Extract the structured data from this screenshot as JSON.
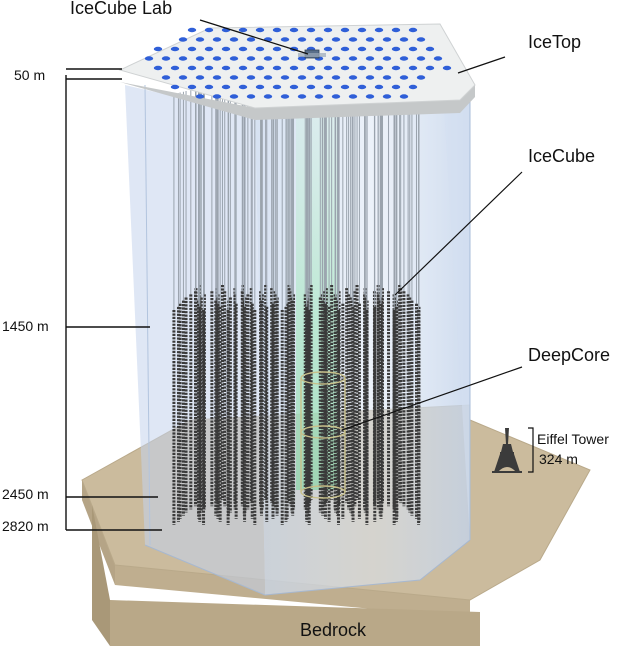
{
  "labels": {
    "icecube_lab": "IceCube Lab",
    "icetop": "IceTop",
    "icecube": "IceCube",
    "deepcore": "DeepCore",
    "bedrock": "Bedrock",
    "eiffel_name": "Eiffel Tower",
    "eiffel_height": "324 m"
  },
  "depths": [
    "50 m",
    "1450 m",
    "2450 m",
    "2820 m"
  ],
  "colors": {
    "surface": "#eef0f0",
    "surface_edge": "#c9cccd",
    "tank": "#2f5fd8",
    "ice_volume": "#bcd0ea",
    "bedrock_top": "#c8b89a",
    "bedrock_side": "#b7a68a",
    "bedrock_front": "#a89777",
    "string_sensors": "#3a3a3a",
    "deepcore_glow": "#8fe0a8"
  },
  "icons": {
    "eiffel": "eiffel-tower-icon"
  }
}
